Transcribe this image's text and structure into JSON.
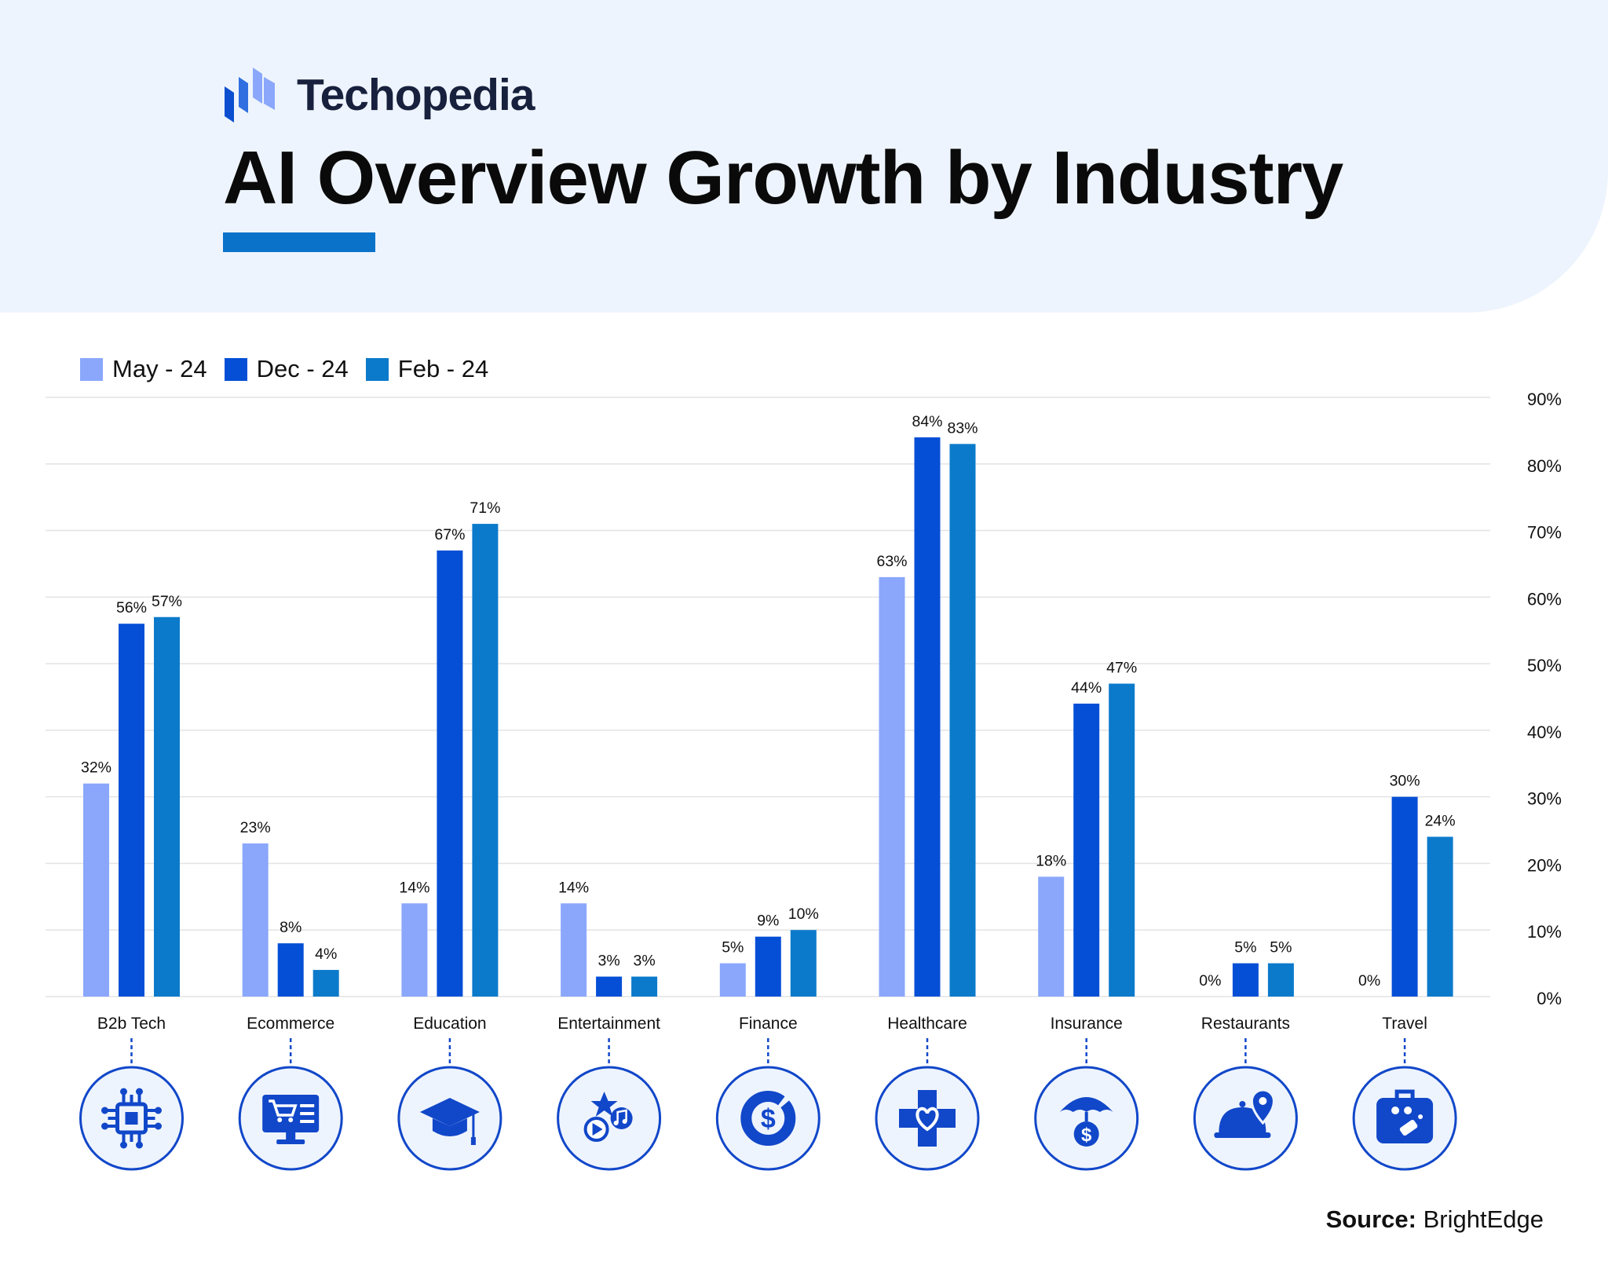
{
  "brand": {
    "name": "Techopedia"
  },
  "title": "AI Overview Growth by Industry",
  "source": {
    "label": "Source:",
    "name": "BrightEdge"
  },
  "colors": {
    "may": "#8aa7fb",
    "dec": "#044fd6",
    "feb": "#0b7acb",
    "accent": "#0b72c9",
    "header_bg": "#eef4fd",
    "grid": "#e3e3e3",
    "icon_bg": "#eef4fd",
    "icon_ring": "#1147c9"
  },
  "chart_data": {
    "type": "bar",
    "title": "AI Overview Growth by Industry",
    "categories": [
      "B2b Tech",
      "Ecommerce",
      "Education",
      "Entertainment",
      "Finance",
      "Healthcare",
      "Insurance",
      "Restaurants",
      "Travel"
    ],
    "series": [
      {
        "name": "May - 24",
        "values": [
          32,
          23,
          14,
          14,
          5,
          63,
          18,
          0,
          0
        ]
      },
      {
        "name": "Dec - 24",
        "values": [
          56,
          8,
          67,
          3,
          9,
          84,
          44,
          5,
          30
        ]
      },
      {
        "name": "Feb - 24",
        "values": [
          57,
          4,
          71,
          3,
          10,
          83,
          47,
          5,
          24
        ]
      }
    ],
    "data_labels": [
      [
        "32%",
        "56%",
        "57%"
      ],
      [
        "23%",
        "8%",
        "4%"
      ],
      [
        "14%",
        "67%",
        "71%"
      ],
      [
        "14%",
        "3%",
        "3%"
      ],
      [
        "5%",
        "9%",
        "10%"
      ],
      [
        "63%",
        "84%",
        "83%"
      ],
      [
        "18%",
        "44%",
        "47%"
      ],
      [
        "0%",
        "5%",
        "5%"
      ],
      [
        "0%",
        "30%",
        "24%"
      ]
    ],
    "y_ticks": [
      "0%",
      "10%",
      "20%",
      "30%",
      "40%",
      "50%",
      "60%",
      "70%",
      "80%",
      "90%"
    ],
    "ylim": [
      0,
      90
    ],
    "y_axis_side": "right",
    "grid": true,
    "legend_position": "top-left",
    "category_icons": [
      "chip-icon",
      "computer-cart-icon",
      "graduation-cap-icon",
      "entertainment-icon",
      "dollar-chart-icon",
      "medical-cross-heart-icon",
      "umbrella-dollar-icon",
      "cloche-location-icon",
      "suitcase-icon"
    ]
  }
}
